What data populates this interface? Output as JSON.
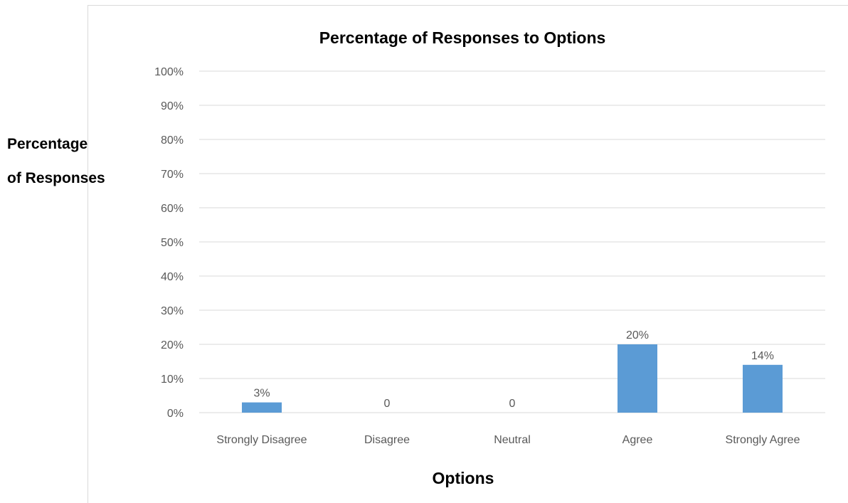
{
  "chart_data": {
    "type": "bar",
    "title": "Percentage of Responses to Options",
    "xlabel": "Options",
    "ylabel_lines": [
      "Percentage",
      "of Responses"
    ],
    "categories": [
      "Strongly Disagree",
      "Disagree",
      "Neutral",
      "Agree",
      "Strongly Agree"
    ],
    "values": [
      3,
      0,
      0,
      20,
      14
    ],
    "data_labels": [
      "3%",
      "0",
      "0",
      "20%",
      "14%"
    ],
    "yticks": [
      "0%",
      "10%",
      "20%",
      "30%",
      "40%",
      "50%",
      "60%",
      "70%",
      "80%",
      "90%",
      "100%"
    ],
    "ylim": [
      0,
      100
    ],
    "grid": true,
    "legend": "none",
    "colors": {
      "bar": "#5b9bd5",
      "gridline": "#d9d9d9",
      "tick_text": "#595959",
      "title_text": "#000000"
    }
  }
}
